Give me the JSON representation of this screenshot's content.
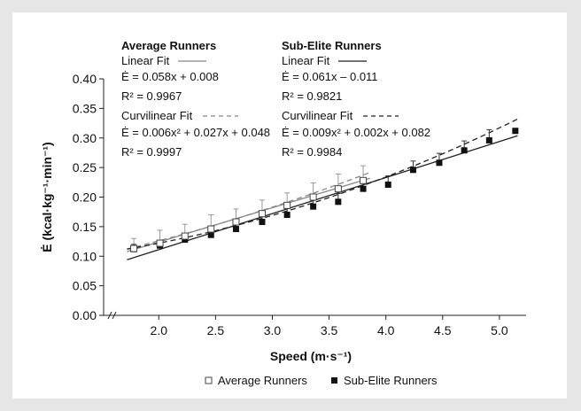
{
  "chart_data": {
    "type": "scatter",
    "xlabel": "Speed (m·s⁻¹)",
    "ylabel": "Ė (kcal·kg⁻¹·min⁻¹)",
    "xlim": [
      1.6,
      5.5
    ],
    "ylim": [
      0.0,
      0.4
    ],
    "x_ticks": [
      "2.0",
      "2.5",
      "3.0",
      "3.5",
      "4.0",
      "4.5",
      "5.0"
    ],
    "y_ticks": [
      "0.00",
      "0.05",
      "0.10",
      "0.15",
      "0.20",
      "0.25",
      "0.30",
      "0.35",
      "0.40"
    ],
    "axis_break": true,
    "grid": false,
    "legend_position": "bottom",
    "series": [
      {
        "name": "Average Runners",
        "marker": "open-square",
        "x": [
          1.78,
          2.01,
          2.23,
          2.46,
          2.68,
          2.91,
          3.13,
          3.36,
          3.58,
          3.8
        ],
        "y": [
          0.113,
          0.122,
          0.134,
          0.146,
          0.158,
          0.172,
          0.186,
          0.2,
          0.214,
          0.228
        ],
        "err": [
          0.017,
          0.022,
          0.02,
          0.024,
          0.022,
          0.023,
          0.021,
          0.024,
          0.025,
          0.025
        ]
      },
      {
        "name": "Sub-Elite Runners",
        "marker": "filled-square",
        "x": [
          1.78,
          2.01,
          2.23,
          2.46,
          2.68,
          2.91,
          3.13,
          3.36,
          3.58,
          3.8,
          4.02,
          4.24,
          4.47,
          4.69,
          4.91,
          5.14
        ],
        "y": [
          0.112,
          0.118,
          0.128,
          0.136,
          0.146,
          0.158,
          0.17,
          0.184,
          0.192,
          0.214,
          0.221,
          0.246,
          0.258,
          0.279,
          0.296,
          0.312
        ],
        "err": [
          0.008,
          0.008,
          0.009,
          0.009,
          0.01,
          0.011,
          0.011,
          0.012,
          0.014,
          0.015,
          0.015,
          0.015,
          0.016,
          0.016,
          0.018,
          0.0
        ]
      }
    ],
    "fits": {
      "average": {
        "heading": "Average Runners",
        "linear_label": "Linear Fit",
        "linear_eq": "Ė = 0.058x + 0.008",
        "linear_r2": "R² = 0.9967",
        "linear_coef": [
          0.058,
          0.008
        ],
        "curv_label": "Curvilinear Fit",
        "curv_eq": "Ė = 0.006x² + 0.027x + 0.048",
        "curv_r2": "R² = 0.9997",
        "curv_coef": [
          0.006,
          0.027,
          0.048
        ],
        "x_range": [
          1.72,
          3.86
        ],
        "line_color": "#888888"
      },
      "subelite": {
        "heading": "Sub-Elite Runners",
        "linear_label": "Linear Fit",
        "linear_eq": "Ė = 0.061x – 0.011",
        "linear_r2": "R² = 0.9821",
        "linear_coef": [
          0.061,
          -0.011
        ],
        "curv_label": "Curvilinear Fit",
        "curv_eq": "Ė = 0.009x² + 0.002x + 0.082",
        "curv_r2": "R² = 0.9984",
        "curv_coef": [
          0.009,
          0.002,
          0.082
        ],
        "x_range": [
          1.72,
          5.16
        ],
        "line_color": "#222222"
      }
    }
  },
  "legend": {
    "average": "Average Runners",
    "subelite": "Sub-Elite Runners"
  }
}
